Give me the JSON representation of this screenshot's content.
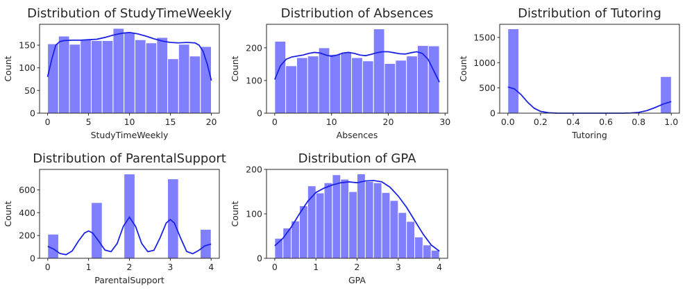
{
  "colors": {
    "bar": "#8080ff",
    "kde": "#1a22e6",
    "axis": "#262626"
  },
  "chart_data": [
    {
      "type": "bar",
      "title": "Distribution of StudyTimeWeekly",
      "xlabel": "StudyTimeWeekly",
      "ylabel": "Count",
      "xlim": [
        -0.98,
        20.97
      ],
      "ylim": [
        0,
        196
      ],
      "xticks": [
        0,
        5,
        10,
        15,
        20
      ],
      "yticks": [
        0,
        50,
        100,
        150
      ],
      "bins": {
        "start": 0.0,
        "width": 1.333,
        "values": [
          153,
          170,
          152,
          163,
          160,
          160,
          187,
          178,
          162,
          155,
          167,
          120,
          152,
          126,
          147
        ]
      },
      "kde": {
        "x": [
          0,
          0.5,
          1,
          1.5,
          2,
          3,
          4,
          5,
          6,
          7,
          8,
          9,
          10,
          11,
          12,
          13,
          14,
          15,
          16,
          17,
          18,
          18.5,
          19,
          19.5,
          20
        ],
        "y": [
          80,
          118,
          150,
          158,
          160,
          161,
          161,
          162,
          163,
          167,
          172,
          176,
          178,
          175,
          170,
          164,
          159,
          156,
          155,
          156,
          155,
          150,
          136,
          108,
          72
        ]
      }
    },
    {
      "type": "bar",
      "title": "Distribution of Absences",
      "xlabel": "Absences",
      "ylabel": "Count",
      "xlim": [
        -1.45,
        30.45
      ],
      "ylim": [
        0,
        272
      ],
      "xticks": [
        0,
        10,
        20,
        30
      ],
      "yticks": [
        0,
        100,
        200
      ],
      "bins": {
        "start": 0.0,
        "width": 1.933,
        "values": [
          220,
          145,
          170,
          175,
          200,
          180,
          185,
          170,
          160,
          258,
          152,
          162,
          175,
          207,
          206
        ]
      },
      "kde": {
        "x": [
          0,
          1,
          2,
          3,
          4,
          5,
          6,
          7,
          8,
          9,
          10,
          11,
          12,
          13,
          14,
          15,
          16,
          17,
          18,
          19,
          20,
          21,
          22,
          23,
          24,
          25,
          26,
          27,
          28,
          29
        ],
        "y": [
          103,
          145,
          165,
          172,
          175,
          178,
          183,
          186,
          184,
          178,
          174,
          178,
          184,
          186,
          183,
          178,
          176,
          180,
          185,
          188,
          188,
          185,
          182,
          181,
          185,
          188,
          183,
          165,
          130,
          95
        ]
      }
    },
    {
      "type": "bar",
      "title": "Distribution of Tutoring",
      "xlabel": "Tutoring",
      "ylabel": "Count",
      "xlim": [
        -0.05,
        1.05
      ],
      "ylim": [
        0,
        1760
      ],
      "xticks": [
        0.0,
        0.2,
        0.4,
        0.6,
        0.8,
        1.0
      ],
      "yticks": [
        0,
        500,
        1000,
        1500
      ],
      "bins": {
        "start": 0.0,
        "width": 0.0667,
        "values": [
          1671,
          0,
          0,
          0,
          0,
          0,
          0,
          0,
          0,
          0,
          0,
          0,
          0,
          0,
          725
        ]
      },
      "kde": {
        "x": [
          0,
          0.04,
          0.08,
          0.12,
          0.16,
          0.2,
          0.25,
          0.3,
          0.4,
          0.5,
          0.6,
          0.7,
          0.75,
          0.8,
          0.85,
          0.9,
          0.95,
          1.0
        ],
        "y": [
          520,
          480,
          370,
          220,
          100,
          35,
          8,
          1,
          0,
          0,
          0,
          0,
          3,
          15,
          50,
          110,
          180,
          230
        ]
      }
    },
    {
      "type": "bar",
      "title": "Distribution of ParentalSupport",
      "xlabel": "ParentalSupport",
      "ylabel": "Count",
      "xlim": [
        -0.2,
        4.2
      ],
      "ylim": [
        0,
        780
      ],
      "xticks": [
        0,
        1,
        2,
        3,
        4
      ],
      "yticks": [
        0,
        200,
        400,
        600
      ],
      "bins": {
        "start": 0.0,
        "width": 0.2667,
        "values": [
          212,
          0,
          0,
          0,
          489,
          0,
          0,
          740,
          0,
          0,
          0,
          697,
          0,
          0,
          254
        ]
      },
      "kde": {
        "x": [
          0,
          0.15,
          0.3,
          0.45,
          0.6,
          0.75,
          0.9,
          1.0,
          1.1,
          1.25,
          1.4,
          1.55,
          1.7,
          1.85,
          2.0,
          2.15,
          2.3,
          2.45,
          2.6,
          2.75,
          2.9,
          3.0,
          3.1,
          3.25,
          3.4,
          3.55,
          3.7,
          3.85,
          4.0
        ],
        "y": [
          105,
          80,
          42,
          32,
          65,
          150,
          222,
          240,
          222,
          150,
          72,
          58,
          130,
          280,
          360,
          280,
          130,
          58,
          70,
          180,
          310,
          340,
          310,
          180,
          60,
          40,
          70,
          110,
          125
        ]
      }
    },
    {
      "type": "bar",
      "title": "Distribution of GPA",
      "xlabel": "GPA",
      "ylabel": "Count",
      "xlim": [
        -0.2,
        4.2
      ],
      "ylim": [
        0,
        200
      ],
      "xticks": [
        0,
        1,
        2,
        3,
        4
      ],
      "yticks": [
        0,
        100,
        200
      ],
      "bins": {
        "start": 0.0,
        "width": 0.2,
        "values": [
          45,
          68,
          84,
          118,
          163,
          147,
          170,
          188,
          178,
          150,
          190,
          173,
          170,
          148,
          130,
          103,
          83,
          48,
          30,
          18
        ]
      },
      "kde": {
        "x": [
          0,
          0.2,
          0.4,
          0.6,
          0.8,
          1.0,
          1.2,
          1.4,
          1.6,
          1.8,
          2.0,
          2.2,
          2.4,
          2.6,
          2.8,
          3.0,
          3.2,
          3.4,
          3.6,
          3.8,
          4.0
        ],
        "y": [
          28,
          45,
          70,
          100,
          128,
          148,
          158,
          165,
          170,
          172,
          170,
          174,
          175,
          172,
          160,
          140,
          115,
          85,
          55,
          30,
          16
        ]
      }
    }
  ]
}
